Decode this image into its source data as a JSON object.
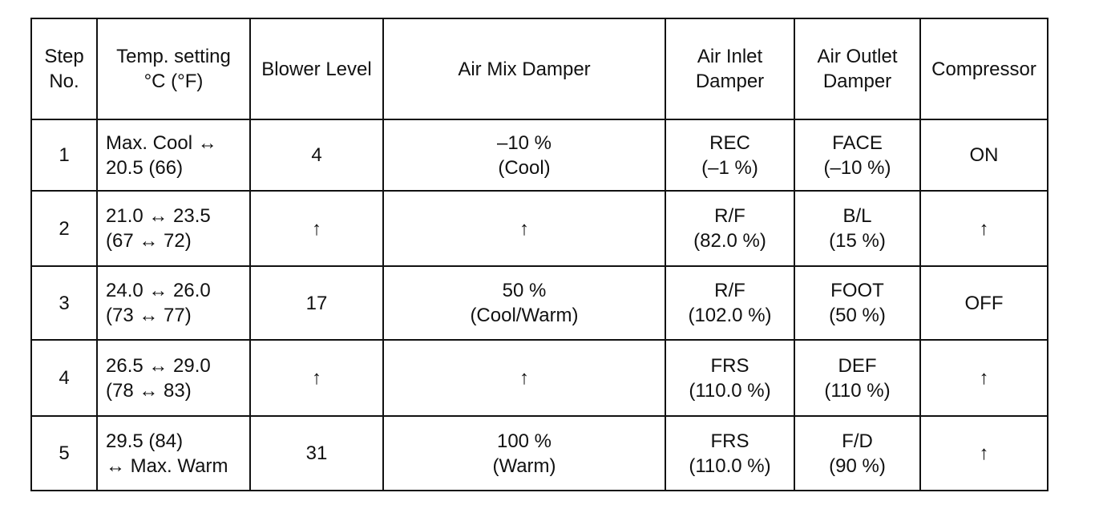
{
  "table": {
    "header": [
      [
        "Step",
        "No."
      ],
      [
        "Temp. setting",
        "°C (°F)"
      ],
      [
        "Blower Level"
      ],
      [
        "Air Mix Damper"
      ],
      [
        "Air Inlet",
        "Damper"
      ],
      [
        "Air Outlet",
        "Damper"
      ],
      [
        "Compressor"
      ]
    ],
    "rows": [
      [
        [
          "1"
        ],
        [
          "Max. Cool ↔",
          "20.5 (66)"
        ],
        [
          "4"
        ],
        [
          "–10 %",
          "(Cool)"
        ],
        [
          "REC",
          "(–1 %)"
        ],
        [
          "FACE",
          "(–10 %)"
        ],
        [
          "ON"
        ]
      ],
      [
        [
          "2"
        ],
        [
          "21.0 ↔ 23.5",
          "(67 ↔ 72)"
        ],
        [
          "↑"
        ],
        [
          "↑"
        ],
        [
          "R/F",
          "(82.0 %)"
        ],
        [
          "B/L",
          "(15 %)"
        ],
        [
          "↑"
        ]
      ],
      [
        [
          "3"
        ],
        [
          "24.0 ↔ 26.0",
          "(73 ↔ 77)"
        ],
        [
          "17"
        ],
        [
          "50 %",
          "(Cool/Warm)"
        ],
        [
          "R/F",
          "(102.0 %)"
        ],
        [
          "FOOT",
          "(50 %)"
        ],
        [
          "OFF"
        ]
      ],
      [
        [
          "4"
        ],
        [
          "26.5 ↔ 29.0",
          "(78 ↔ 83)"
        ],
        [
          "↑"
        ],
        [
          "↑"
        ],
        [
          "FRS",
          "(110.0 %)"
        ],
        [
          "DEF",
          "(110 %)"
        ],
        [
          "↑"
        ]
      ],
      [
        [
          "5"
        ],
        [
          "29.5 (84)",
          "↔ Max. Warm"
        ],
        [
          "31"
        ],
        [
          "100 %",
          "(Warm)"
        ],
        [
          "FRS",
          "(110.0 %)"
        ],
        [
          "F/D",
          "(90 %)"
        ],
        [
          "↑"
        ]
      ]
    ]
  }
}
